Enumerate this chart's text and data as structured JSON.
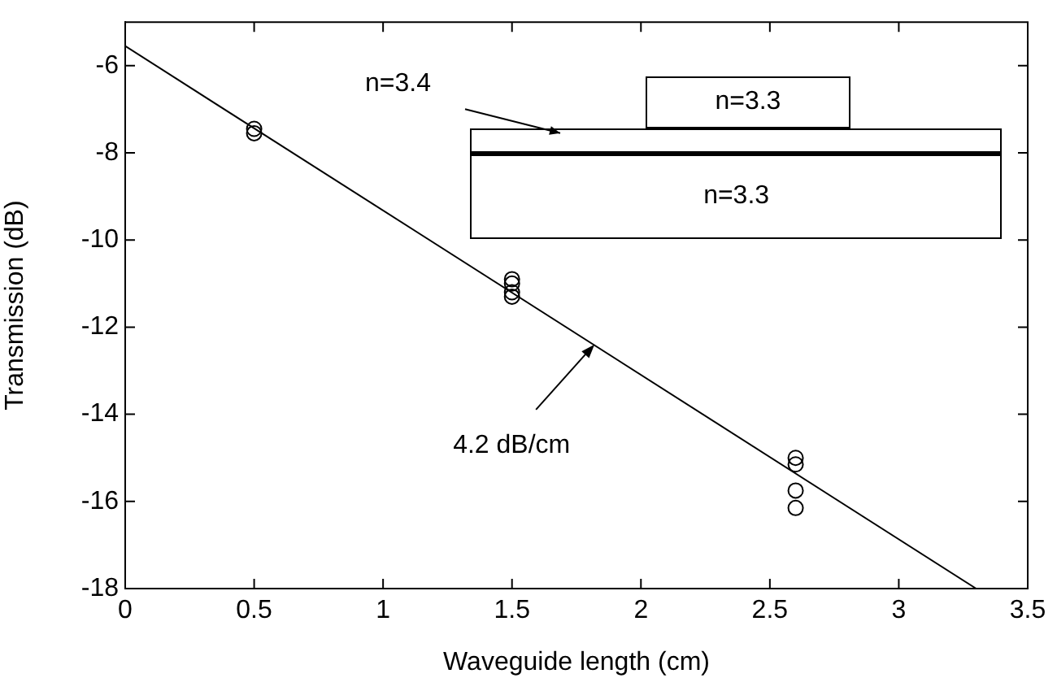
{
  "chart_data": {
    "type": "scatter",
    "xlabel": "Waveguide length (cm)",
    "ylabel": "Transmission (dB)",
    "xlim": [
      0,
      3.5
    ],
    "xticks": [
      0,
      0.5,
      1,
      1.5,
      2,
      2.5,
      3,
      3.5
    ],
    "ylim": [
      -18,
      -5
    ],
    "yticks": [
      -18,
      -16,
      -14,
      -12,
      -10,
      -8,
      -6
    ],
    "grid": false,
    "legend": false,
    "marker": "circle",
    "series": [
      {
        "color": "#000000",
        "x": [
          0.5,
          0.5,
          1.5,
          1.5,
          1.5,
          1.5,
          2.6,
          2.6,
          2.6,
          2.6
        ],
        "values": [
          -7.45,
          -7.55,
          -10.9,
          -11.0,
          -11.2,
          -11.3,
          -15.0,
          -15.15,
          -15.75,
          -16.15
        ]
      },
      {
        "type": "line",
        "color": "#000000",
        "x": [
          0,
          3.3
        ],
        "values": [
          -5.55,
          -18
        ],
        "marker": "none"
      }
    ],
    "annotations": [
      {
        "text": "4.2 dB/cm",
        "x": 1.82,
        "y": -12.4
      },
      "n=3.4",
      "n=3.3",
      "n=3.3"
    ]
  }
}
